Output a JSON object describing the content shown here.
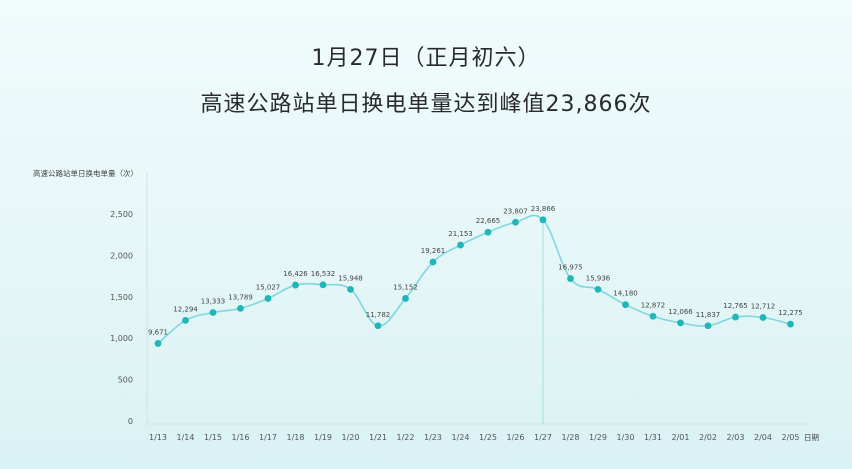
{
  "title_line1": "1月27日（正月初六）",
  "title_line2": "高速公路站单日换电单量达到峰值23,866次",
  "chart_data": {
    "type": "line",
    "ylabel": "高速公路站单日换电单量（次）",
    "xlabel": "日期",
    "ylim": [
      0,
      2500
    ],
    "yticks": [
      0,
      500,
      1000,
      1500,
      2000,
      2500
    ],
    "ytick_labels": [
      "0",
      "500",
      "1,000",
      "1,500",
      "2,000",
      "2,500"
    ],
    "categories": [
      "1/13",
      "1/14",
      "1/15",
      "1/16",
      "1/17",
      "1/18",
      "1/19",
      "1/20",
      "1/21",
      "1/22",
      "1/23",
      "1/24",
      "1/25",
      "1/26",
      "1/27",
      "1/28",
      "1/29",
      "1/30",
      "1/31",
      "2/01",
      "2/02",
      "2/03",
      "2/04",
      "2/05"
    ],
    "values": [
      937,
      1215,
      1310,
      1360,
      1480,
      1642,
      1645,
      1590,
      1150,
      1480,
      1920,
      2125,
      2280,
      2400,
      2430,
      1720,
      1590,
      1405,
      1265,
      1185,
      1150,
      1255,
      1250,
      1170
    ],
    "data_labels": [
      "9,671",
      "12,294",
      "13,333",
      "13,789",
      "15,027",
      "16,426",
      "16,532",
      "15,948",
      "11,782",
      "15,152",
      "19,261",
      "21,153",
      "22,665",
      "23,807",
      "23,866",
      "16,975",
      "15,936",
      "14,180",
      "12,872",
      "12,066",
      "11,837",
      "12,765",
      "12,712",
      "12,275"
    ],
    "highlight": "1/27",
    "grid": false,
    "colors": {
      "line": "#7fd6e0",
      "marker": "#20b5b8",
      "axis": "#cfe3e5"
    }
  }
}
